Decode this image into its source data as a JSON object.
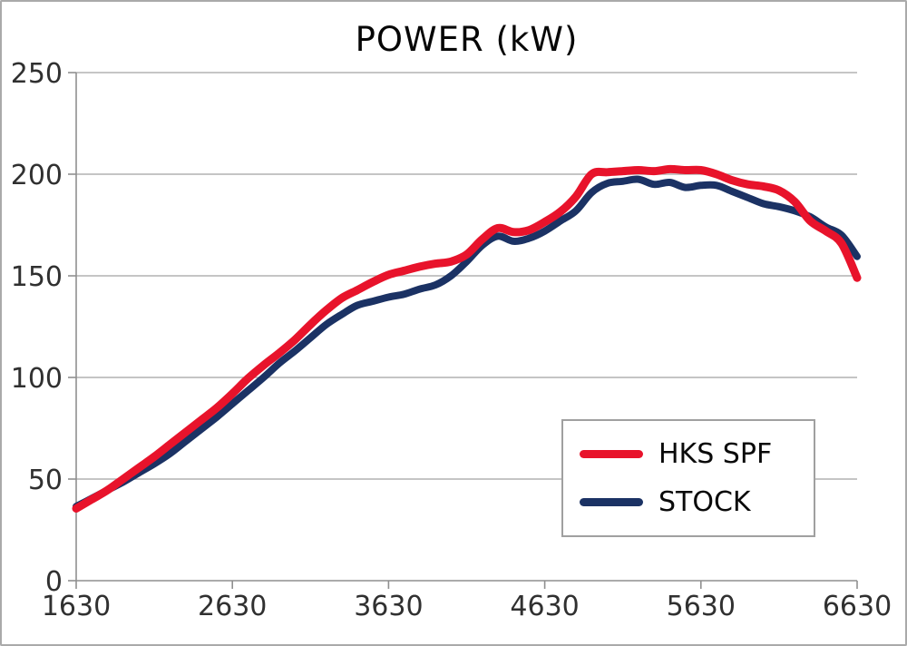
{
  "chart": {
    "title": "POWER (kW)"
  },
  "axes": {
    "grid_color": "#b2b2b2",
    "axis_color": "#8f8f8f",
    "label_color": "#303030"
  },
  "legend": {
    "items": [
      {
        "label": "HKS SPF",
        "color": "#e8132b"
      },
      {
        "label": "STOCK",
        "color": "#1b3264"
      }
    ]
  },
  "chart_data": {
    "type": "line",
    "title": "POWER (kW)",
    "xlabel": "",
    "ylabel": "",
    "x_unit": "rpm",
    "y_unit": "kW",
    "xlim": [
      1630,
      6630
    ],
    "ylim": [
      0,
      250
    ],
    "x_ticks": [
      1630,
      2630,
      3630,
      4630,
      5630,
      6630
    ],
    "y_ticks": [
      0,
      50,
      100,
      150,
      200,
      250
    ],
    "grid": "horizontal",
    "legend_position": "inside-lower-right",
    "x": [
      1630,
      1730,
      1830,
      1930,
      2030,
      2130,
      2230,
      2330,
      2430,
      2530,
      2630,
      2730,
      2830,
      2930,
      3030,
      3130,
      3230,
      3330,
      3430,
      3530,
      3630,
      3730,
      3830,
      3930,
      4030,
      4130,
      4230,
      4330,
      4430,
      4530,
      4630,
      4730,
      4830,
      4930,
      5030,
      5130,
      5230,
      5330,
      5430,
      5530,
      5630,
      5730,
      5830,
      5930,
      6030,
      6130,
      6230,
      6330,
      6430,
      6530,
      6630
    ],
    "series": [
      {
        "name": "HKS SPF",
        "color": "#e8132b",
        "values": [
          35.5,
          40,
          44.5,
          50,
          55.5,
          61,
          67,
          73,
          79,
          85,
          92,
          99.5,
          106,
          112,
          118.5,
          126,
          133,
          139,
          143,
          147,
          150.5,
          152.5,
          154.5,
          156,
          157,
          160.5,
          168,
          173.5,
          171.5,
          172.5,
          176.5,
          181.5,
          189,
          200,
          201,
          201.5,
          202,
          201.5,
          202.5,
          202,
          202,
          200,
          197,
          195,
          194,
          192,
          186.5,
          177,
          172,
          166,
          149
        ]
      },
      {
        "name": "STOCK",
        "color": "#1b3264",
        "values": [
          36.5,
          40.5,
          44.5,
          48.5,
          53,
          57.5,
          62.5,
          68.5,
          74.5,
          80.5,
          87,
          93.5,
          100,
          107,
          113,
          119.5,
          126,
          131,
          135.5,
          137.5,
          139.5,
          141,
          143.5,
          145.5,
          150,
          157,
          165,
          169.5,
          167,
          168.5,
          172,
          177,
          182,
          191,
          195.5,
          196.5,
          197.5,
          195,
          196,
          193.5,
          194.5,
          194.5,
          191.5,
          188.5,
          185.5,
          184,
          182,
          179,
          174,
          170,
          159.5
        ]
      }
    ]
  }
}
